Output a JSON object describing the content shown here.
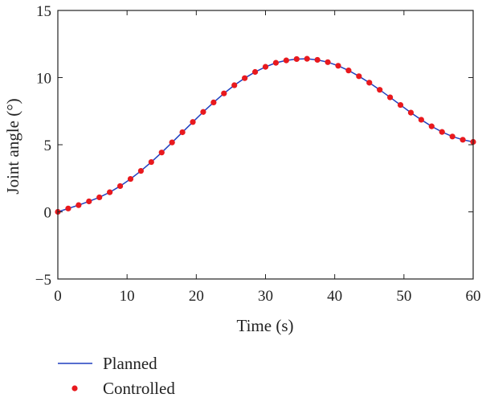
{
  "chart_data": {
    "type": "line",
    "title": "",
    "xlabel": "Time (s)",
    "ylabel": "Joint angle (°)",
    "xlim": [
      0,
      60
    ],
    "ylim": [
      -5,
      15
    ],
    "xticks": [
      "0",
      "10",
      "20",
      "30",
      "40",
      "50",
      "60"
    ],
    "yticks": [
      "−5",
      "0",
      "5",
      "10",
      "15"
    ],
    "grid": false,
    "legend_position": "bottom-left, below plot",
    "series": [
      {
        "name": "Planned",
        "style": "line",
        "color": "#1f3fbf",
        "x": [
          0,
          1.5,
          3,
          4.5,
          6,
          7.5,
          9,
          10.5,
          12,
          13.5,
          15,
          16.5,
          18,
          19.5,
          21,
          22.5,
          24,
          25.5,
          27,
          28.5,
          30,
          31.5,
          33,
          34.5,
          36,
          37.5,
          39,
          40.5,
          42,
          43.5,
          45,
          46.5,
          48,
          49.5,
          51,
          52.5,
          54,
          55.5,
          57,
          58.5,
          60
        ],
        "y": [
          0.0,
          0.25,
          0.5,
          0.78,
          1.08,
          1.46,
          1.92,
          2.45,
          3.05,
          3.71,
          4.42,
          5.17,
          5.93,
          6.69,
          7.44,
          8.15,
          8.82,
          9.43,
          9.96,
          10.42,
          10.8,
          11.1,
          11.28,
          11.38,
          11.4,
          11.32,
          11.15,
          10.88,
          10.53,
          10.1,
          9.62,
          9.09,
          8.53,
          7.96,
          7.39,
          6.86,
          6.37,
          5.95,
          5.61,
          5.37,
          5.21
        ]
      },
      {
        "name": "Controlled",
        "style": "scatter",
        "color": "#e8191e",
        "x": [
          0,
          1.5,
          3,
          4.5,
          6,
          7.5,
          9,
          10.5,
          12,
          13.5,
          15,
          16.5,
          18,
          19.5,
          21,
          22.5,
          24,
          25.5,
          27,
          28.5,
          30,
          31.5,
          33,
          34.5,
          36,
          37.5,
          39,
          40.5,
          42,
          43.5,
          45,
          46.5,
          48,
          49.5,
          51,
          52.5,
          54,
          55.5,
          57,
          58.5,
          60
        ],
        "y": [
          0.0,
          0.25,
          0.5,
          0.78,
          1.08,
          1.46,
          1.92,
          2.45,
          3.05,
          3.71,
          4.42,
          5.17,
          5.93,
          6.69,
          7.44,
          8.15,
          8.82,
          9.43,
          9.96,
          10.42,
          10.8,
          11.1,
          11.28,
          11.38,
          11.4,
          11.32,
          11.15,
          10.88,
          10.53,
          10.1,
          9.62,
          9.09,
          8.53,
          7.96,
          7.39,
          6.86,
          6.37,
          5.95,
          5.61,
          5.37,
          5.21
        ]
      }
    ],
    "legend": [
      {
        "label": "Planned"
      },
      {
        "label": "Controlled"
      }
    ]
  }
}
